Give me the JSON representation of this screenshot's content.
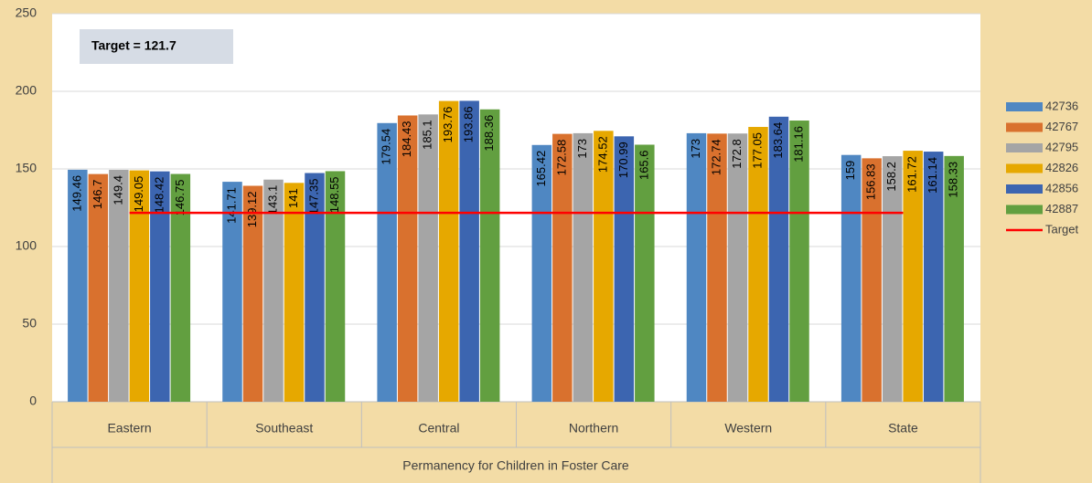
{
  "chart_data": {
    "type": "bar",
    "annotation": "Target = 121.7",
    "x_label": "Permanency for Children in Foster Care",
    "categories": [
      "Eastern",
      "Southeast",
      "Central",
      "Northern",
      "Western",
      "State"
    ],
    "series": [
      {
        "name": "42736",
        "color": "#4f87c2",
        "values": [
          149.46,
          141.71,
          179.54,
          165.42,
          173,
          159
        ]
      },
      {
        "name": "42767",
        "color": "#d9712e",
        "values": [
          146.7,
          139.12,
          184.43,
          172.58,
          172.74,
          156.83
        ]
      },
      {
        "name": "42795",
        "color": "#a5a5a5",
        "values": [
          149.4,
          143.1,
          185.1,
          173,
          172.8,
          158.2
        ]
      },
      {
        "name": "42826",
        "color": "#e6a800",
        "values": [
          149.05,
          141,
          193.76,
          174.52,
          177.05,
          161.72
        ]
      },
      {
        "name": "42856",
        "color": "#3c65b0",
        "values": [
          148.42,
          147.35,
          193.86,
          170.99,
          183.64,
          161.14
        ]
      },
      {
        "name": "42887",
        "color": "#629f40",
        "values": [
          146.75,
          148.55,
          188.36,
          165.6,
          181.16,
          158.33
        ]
      },
      {
        "name": "Target",
        "type": "line",
        "color": "#ff0000",
        "values": [
          121.7,
          121.7,
          121.7,
          121.7,
          121.7,
          121.7
        ]
      }
    ],
    "ylim": [
      0,
      250
    ],
    "yticks": [
      0,
      50,
      100,
      150,
      200,
      250
    ],
    "grid": true,
    "legend": "right"
  }
}
